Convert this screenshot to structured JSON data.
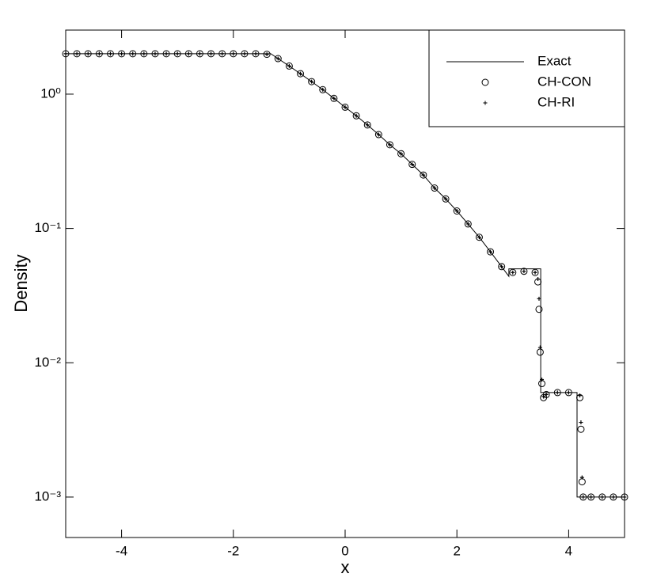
{
  "chart_data": {
    "type": "line",
    "xlabel": "x",
    "ylabel": "Density",
    "xlim": [
      -5,
      5
    ],
    "xticks": [
      -4,
      -2,
      0,
      2,
      4
    ],
    "ylim": [
      0.0005,
      3
    ],
    "log_y": true,
    "yticks": [
      {
        "value": 1,
        "label": "10⁰"
      },
      {
        "value": 0.1,
        "label": "10⁻¹"
      },
      {
        "value": 0.01,
        "label": "10⁻²"
      },
      {
        "value": 0.001,
        "label": "10⁻³"
      }
    ],
    "legend": "upper right",
    "series": [
      {
        "name": "Exact",
        "color": "#000000",
        "marker": "line",
        "x": [
          -5,
          -1.33,
          -1.2,
          -1.0,
          -0.8,
          -0.6,
          -0.4,
          -0.2,
          0,
          0.2,
          0.4,
          0.6,
          0.8,
          1.0,
          1.2,
          1.4,
          1.6,
          1.8,
          2.0,
          2.2,
          2.4,
          2.6,
          2.8,
          2.93,
          2.93,
          3.5,
          3.5,
          4.15,
          4.15,
          5
        ],
        "values": [
          2,
          2,
          1.84,
          1.62,
          1.42,
          1.24,
          1.08,
          0.93,
          0.8,
          0.69,
          0.59,
          0.5,
          0.42,
          0.36,
          0.3,
          0.25,
          0.2,
          0.166,
          0.135,
          0.108,
          0.086,
          0.067,
          0.052,
          0.044,
          0.05,
          0.05,
          0.006,
          0.006,
          0.001,
          0.001
        ]
      },
      {
        "name": "CH-CON",
        "color": "#000000",
        "marker": "circle",
        "x": [
          -5,
          -4.8,
          -4.6,
          -4.4,
          -4.2,
          -4.0,
          -3.8,
          -3.6,
          -3.4,
          -3.2,
          -3.0,
          -2.8,
          -2.6,
          -2.4,
          -2.2,
          -2.0,
          -1.8,
          -1.6,
          -1.4,
          -1.2,
          -1.0,
          -0.8,
          -0.6,
          -0.4,
          -0.2,
          0,
          0.2,
          0.4,
          0.6,
          0.8,
          1.0,
          1.2,
          1.4,
          1.6,
          1.8,
          2.0,
          2.2,
          2.4,
          2.6,
          2.8,
          3.0,
          3.2,
          3.4,
          3.45,
          3.47,
          3.49,
          3.52,
          3.55,
          3.6,
          3.8,
          4.0,
          4.2,
          4.22,
          4.24,
          4.26,
          4.4,
          4.6,
          4.8,
          5.0
        ],
        "values": [
          2,
          2,
          2,
          2,
          2,
          2,
          2,
          2,
          2,
          2,
          2,
          2,
          2,
          2,
          2,
          2,
          2,
          2,
          1.98,
          1.84,
          1.62,
          1.42,
          1.24,
          1.08,
          0.93,
          0.8,
          0.69,
          0.59,
          0.5,
          0.42,
          0.36,
          0.3,
          0.25,
          0.2,
          0.166,
          0.135,
          0.108,
          0.086,
          0.067,
          0.052,
          0.047,
          0.048,
          0.047,
          0.04,
          0.025,
          0.012,
          0.007,
          0.0055,
          0.0058,
          0.006,
          0.006,
          0.0055,
          0.0032,
          0.0013,
          0.001,
          0.001,
          0.001,
          0.001,
          0.001
        ]
      },
      {
        "name": "CH-RI",
        "color": "#000000",
        "marker": "plus",
        "x": [
          -5,
          -4.8,
          -4.6,
          -4.4,
          -4.2,
          -4.0,
          -3.8,
          -3.6,
          -3.4,
          -3.2,
          -3.0,
          -2.8,
          -2.6,
          -2.4,
          -2.2,
          -2.0,
          -1.8,
          -1.6,
          -1.4,
          -1.2,
          -1.0,
          -0.8,
          -0.6,
          -0.4,
          -0.2,
          0,
          0.2,
          0.4,
          0.6,
          0.8,
          1.0,
          1.2,
          1.4,
          1.6,
          1.8,
          2.0,
          2.2,
          2.4,
          2.6,
          2.8,
          3.0,
          3.2,
          3.4,
          3.45,
          3.47,
          3.49,
          3.52,
          3.55,
          3.6,
          3.8,
          4.0,
          4.2,
          4.22,
          4.24,
          4.26,
          4.4,
          4.6,
          4.8,
          5.0
        ],
        "values": [
          2,
          2,
          2,
          2,
          2,
          2,
          2,
          2,
          2,
          2,
          2,
          2,
          2,
          2,
          2,
          2,
          2,
          2,
          1.98,
          1.84,
          1.62,
          1.42,
          1.24,
          1.08,
          0.93,
          0.8,
          0.69,
          0.59,
          0.5,
          0.42,
          0.36,
          0.3,
          0.25,
          0.2,
          0.166,
          0.135,
          0.108,
          0.086,
          0.067,
          0.052,
          0.047,
          0.048,
          0.047,
          0.042,
          0.03,
          0.013,
          0.0075,
          0.0056,
          0.0058,
          0.006,
          0.006,
          0.0057,
          0.0036,
          0.0014,
          0.001,
          0.001,
          0.001,
          0.001,
          0.001
        ]
      }
    ]
  }
}
